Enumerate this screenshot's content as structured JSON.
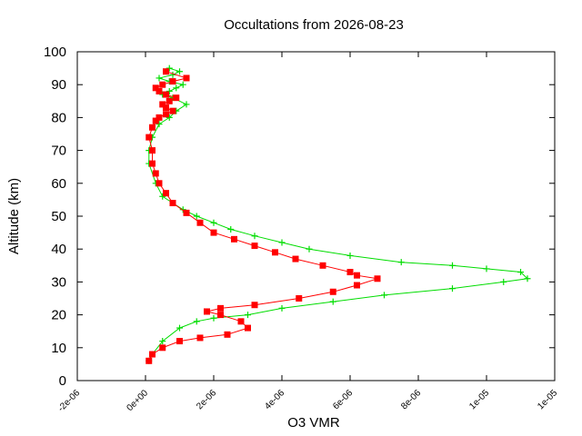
{
  "chart_data": {
    "type": "scatter",
    "title": "Occultations from 2026-08-23",
    "xlabel": "O3 VMR",
    "ylabel": "Altitude (km)",
    "xlim": [
      -2e-06,
      1.2e-05
    ],
    "ylim": [
      0,
      100
    ],
    "xticks": [
      -2e-06,
      0,
      2e-06,
      4e-06,
      6e-06,
      8e-06,
      1e-05,
      1.2e-05
    ],
    "xtick_labels": [
      "-2e-06",
      "0e+00",
      "2e-06",
      "4e-06",
      "6e-06",
      "8e-06",
      "1e-05",
      "1e-05"
    ],
    "yticks": [
      0,
      10,
      20,
      30,
      40,
      50,
      60,
      70,
      80,
      90,
      100
    ],
    "ytick_labels": [
      "0",
      "10",
      "20",
      "30",
      "40",
      "50",
      "60",
      "70",
      "80",
      "90",
      "100"
    ],
    "grid": false,
    "legend": false,
    "series": [
      {
        "marker": "plus",
        "color": "#00dd00",
        "x": [
          1e-07,
          2e-07,
          5e-07,
          1e-06,
          1.5e-06,
          2e-06,
          3e-06,
          4e-06,
          5.5e-06,
          7e-06,
          9e-06,
          1.05e-05,
          1.12e-05,
          1.1e-05,
          1e-05,
          9e-06,
          7.5e-06,
          6e-06,
          4.8e-06,
          4e-06,
          3.2e-06,
          2.5e-06,
          2e-06,
          1.5e-06,
          1.1e-06,
          8e-07,
          5e-07,
          3e-07,
          1e-07,
          1e-07,
          2e-07,
          4e-07,
          7e-07,
          9e-07,
          1.2e-06,
          8e-07,
          5e-07,
          7e-07,
          9e-07,
          1.1e-06,
          7e-07,
          4e-07,
          8e-07,
          1e-06,
          7e-07
        ],
        "y": [
          6,
          8,
          12,
          16,
          18,
          19,
          20,
          22,
          24,
          26,
          28,
          30,
          31,
          33,
          34,
          35,
          36,
          38,
          40,
          42,
          44,
          46,
          48,
          50,
          52,
          54,
          56,
          60,
          66,
          70,
          74,
          78,
          80,
          82,
          84,
          86,
          87,
          88,
          89,
          90,
          91,
          92,
          93,
          94,
          95
        ]
      },
      {
        "marker": "square",
        "color": "#ff0000",
        "x": [
          1e-07,
          2e-07,
          5e-07,
          1e-06,
          1.6e-06,
          2.4e-06,
          3e-06,
          2.8e-06,
          2.2e-06,
          1.8e-06,
          2.2e-06,
          3.2e-06,
          4.5e-06,
          5.5e-06,
          6.2e-06,
          6.8e-06,
          6.2e-06,
          6e-06,
          5.2e-06,
          4.4e-06,
          3.8e-06,
          3.2e-06,
          2.6e-06,
          2e-06,
          1.6e-06,
          1.2e-06,
          8e-07,
          6e-07,
          4e-07,
          3e-07,
          2e-07,
          2e-07,
          1e-07,
          2e-07,
          3e-07,
          4e-07,
          6e-07,
          8e-07,
          6e-07,
          5e-07,
          7e-07,
          9e-07,
          6e-07,
          4e-07,
          3e-07,
          5e-07,
          8e-07,
          1.2e-06,
          6e-07
        ],
        "y": [
          6,
          8,
          10,
          12,
          13,
          14,
          16,
          18,
          20,
          21,
          22,
          23,
          25,
          27,
          29,
          31,
          32,
          33,
          35,
          37,
          39,
          41,
          43,
          45,
          48,
          51,
          54,
          57,
          60,
          63,
          66,
          70,
          74,
          77,
          79,
          80,
          81,
          82,
          83,
          84,
          85,
          86,
          87,
          88,
          89,
          90,
          91,
          92,
          94
        ]
      }
    ]
  }
}
